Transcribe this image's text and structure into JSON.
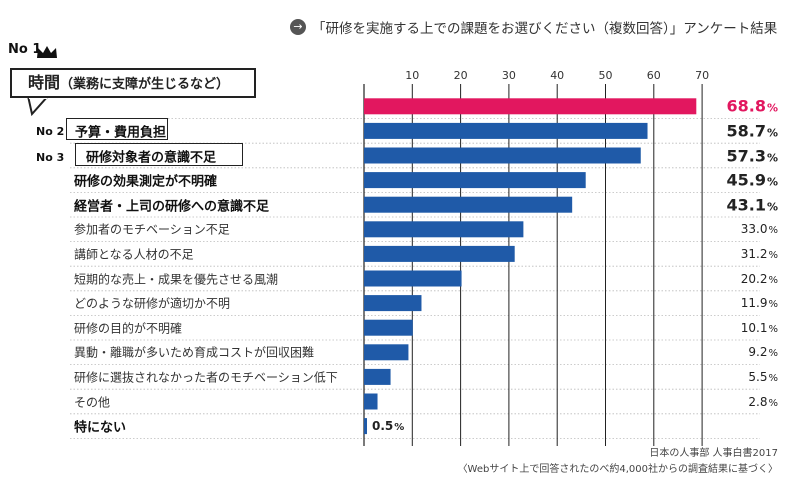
{
  "header": {
    "arrow_icon": "arrow-right-circle-icon",
    "title": "「研修を実施する上での課題をお選びください（複数回答）」アンケート結果"
  },
  "ranks": {
    "no1": "No 1",
    "no2": "No 2",
    "no3": "No 3",
    "crown_icon": "crown-icon"
  },
  "callout": {
    "main": "時間",
    "detail": "（業務に支障が生じるなど）"
  },
  "source": {
    "line1": "日本の人事部  人事白書2017",
    "line2": "〈Webサイト上で回答されたのべ約4,000社からの調査結果に基づく〉"
  },
  "colors": {
    "accent": "#e2175f",
    "bar": "#1f5aa8"
  },
  "chart_data": {
    "type": "bar",
    "orientation": "horizontal",
    "categories": [
      "時間（業務に支障が生じるなど）",
      "予算・費用負担",
      "研修対象者の意識不足",
      "研修の効果測定が不明確",
      "経営者・上司の研修への意識不足",
      "参加者のモチベーション不足",
      "講師となる人材の不足",
      "短期的な売上・成果を優先させる風潮",
      "どのような研修が適切か不明",
      "研修の目的が不明確",
      "異動・離職が多いため育成コストが回収困難",
      "研修に選抜されなかった者のモチベーション低下",
      "その他",
      "特にない"
    ],
    "values": [
      68.8,
      58.7,
      57.3,
      45.9,
      43.1,
      33.0,
      31.2,
      20.2,
      11.9,
      10.1,
      9.2,
      5.5,
      2.8,
      0.5
    ],
    "value_labels": [
      "68.8",
      "58.7",
      "57.3",
      "45.9",
      "43.1",
      "33.0",
      "31.2",
      "20.2",
      "11.9",
      "10.1",
      "9.2",
      "5.5",
      "2.8",
      "0.5"
    ],
    "unit": "%",
    "xticks": [
      10,
      20,
      30,
      40,
      50,
      60,
      70
    ],
    "xlim": [
      0,
      70
    ],
    "grid": true,
    "legend": "none"
  }
}
